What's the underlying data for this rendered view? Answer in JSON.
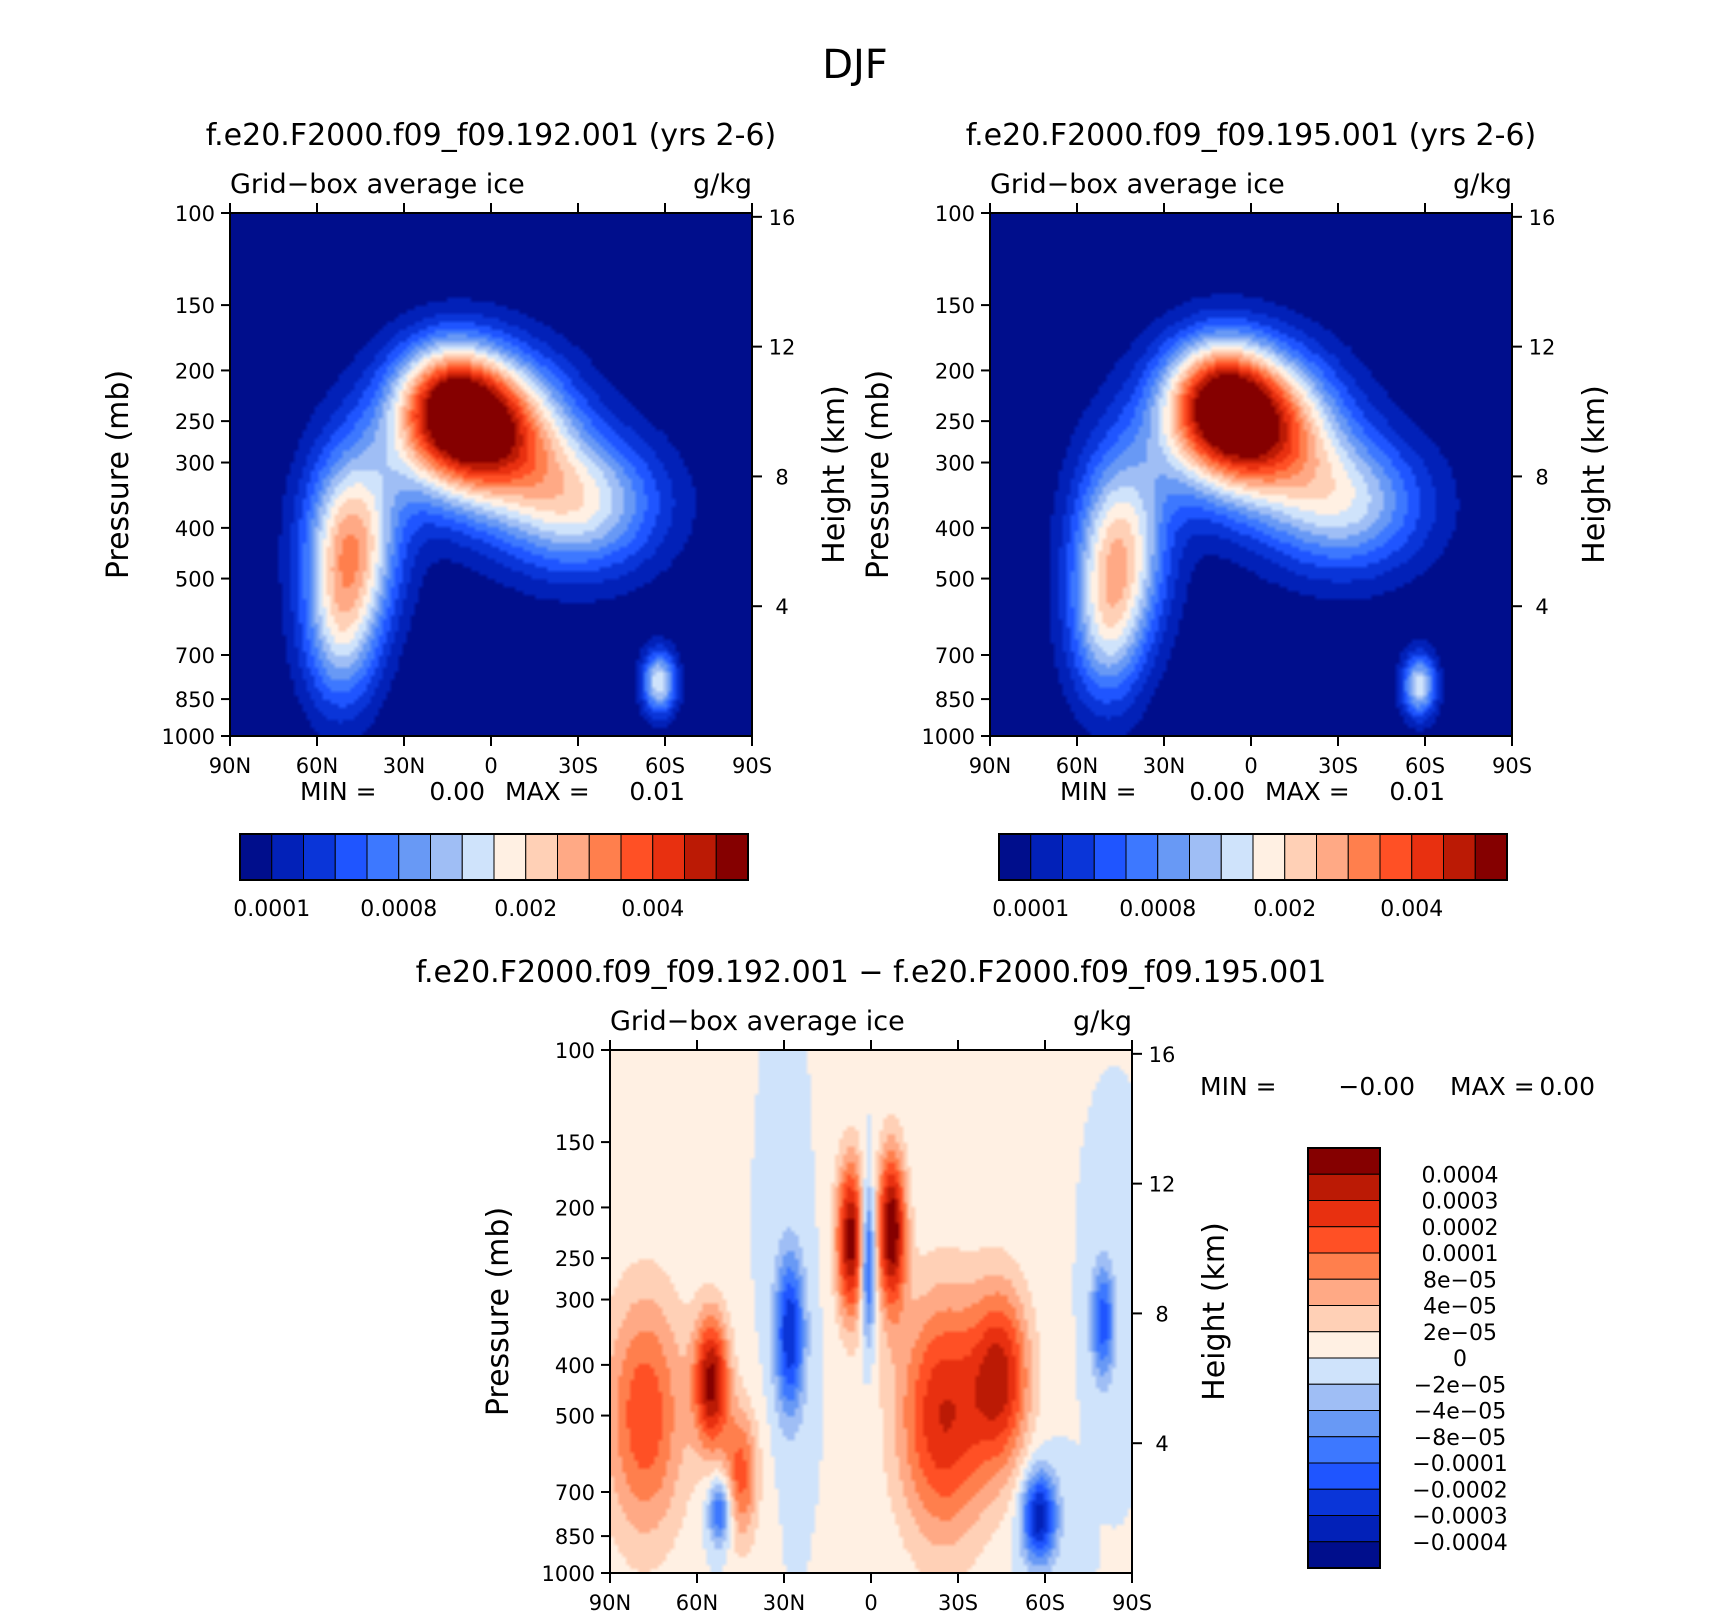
{
  "figure": {
    "title": "DJF"
  },
  "palettes": {
    "abs": [
      "#000e8c",
      "#0221b8",
      "#0a35d8",
      "#1f55ff",
      "#3d78ff",
      "#6899f5",
      "#9fbef5",
      "#cfe3fb",
      "#fff0e3",
      "#ffd0b6",
      "#ffa985",
      "#ff7f4d",
      "#ff5025",
      "#e83010",
      "#bb1a05",
      "#850000"
    ],
    "diff": [
      "#000e8c",
      "#0221b8",
      "#0a35d8",
      "#1f55ff",
      "#3d78ff",
      "#6899f5",
      "#9fbef5",
      "#cfe3fb",
      "#fff0e3",
      "#ffd0b6",
      "#ffa985",
      "#ff7f4d",
      "#ff5025",
      "#e83010",
      "#bb1a05",
      "#850000"
    ]
  },
  "chart_data": [
    {
      "type": "heatmap",
      "id": "p1",
      "title": "f.e20.F2000.f09_f09.192.001 (yrs 2-6)",
      "left_label": "Grid−box average ice",
      "right_label": "g/kg",
      "xlabel": "",
      "ylabel": "Pressure (mb)",
      "ylabel_right": "Height (km)",
      "x_ticks": [
        "90N",
        "60N",
        "30N",
        "0",
        "30S",
        "60S",
        "90S"
      ],
      "x_range": [
        90,
        -90
      ],
      "y_ticks": [
        100,
        150,
        200,
        250,
        300,
        400,
        500,
        700,
        850,
        1000
      ],
      "y_range": [
        100,
        1000
      ],
      "y_scale": "log",
      "height_ticks": [
        16,
        12,
        8,
        4
      ],
      "stats": {
        "min_label": "MIN =",
        "min_value": "0.00",
        "max_label": "MAX =",
        "max_value": "0.01"
      },
      "colorbar": {
        "orientation": "horizontal",
        "labels": [
          "0.0001",
          "0.0008",
          "0.002",
          "0.004"
        ]
      },
      "features": [
        {
          "lat": 5,
          "p": 260,
          "lat_width": 28,
          "p_width": 0.32,
          "amp": 1.0
        },
        {
          "lat": 15,
          "p": 220,
          "lat_width": 18,
          "p_width": 0.25,
          "amp": 0.4
        },
        {
          "lat": 48,
          "p": 420,
          "lat_width": 16,
          "p_width": 0.4,
          "amp": 0.62
        },
        {
          "lat": 52,
          "p": 650,
          "lat_width": 13,
          "p_width": 0.35,
          "amp": 0.35
        },
        {
          "lat": -30,
          "p": 360,
          "lat_width": 28,
          "p_width": 0.3,
          "amp": 0.5
        },
        {
          "lat": -58,
          "p": 790,
          "lat_width": 6,
          "p_width": 0.14,
          "amp": 0.5
        }
      ]
    },
    {
      "type": "heatmap",
      "id": "p2",
      "title": "f.e20.F2000.f09_f09.195.001 (yrs 2-6)",
      "left_label": "Grid−box average ice",
      "right_label": "g/kg",
      "xlabel": "",
      "ylabel": "Pressure (mb)",
      "ylabel_right": "Height (km)",
      "x_ticks": [
        "90N",
        "60N",
        "30N",
        "0",
        "30S",
        "60S",
        "90S"
      ],
      "x_range": [
        90,
        -90
      ],
      "y_ticks": [
        100,
        150,
        200,
        250,
        300,
        400,
        500,
        700,
        850,
        1000
      ],
      "y_range": [
        100,
        1000
      ],
      "y_scale": "log",
      "height_ticks": [
        16,
        12,
        8,
        4
      ],
      "stats": {
        "min_label": "MIN =",
        "min_value": "0.00",
        "max_label": "MAX =",
        "max_value": "0.01"
      },
      "colorbar": {
        "orientation": "horizontal",
        "labels": [
          "0.0001",
          "0.0008",
          "0.002",
          "0.004"
        ]
      },
      "features": [
        {
          "lat": 2,
          "p": 255,
          "lat_width": 28,
          "p_width": 0.32,
          "amp": 0.98
        },
        {
          "lat": 12,
          "p": 215,
          "lat_width": 18,
          "p_width": 0.25,
          "amp": 0.4
        },
        {
          "lat": 45,
          "p": 430,
          "lat_width": 16,
          "p_width": 0.42,
          "amp": 0.55
        },
        {
          "lat": 50,
          "p": 640,
          "lat_width": 13,
          "p_width": 0.35,
          "amp": 0.32
        },
        {
          "lat": -32,
          "p": 360,
          "lat_width": 28,
          "p_width": 0.3,
          "amp": 0.45
        },
        {
          "lat": -58,
          "p": 800,
          "lat_width": 6,
          "p_width": 0.14,
          "amp": 0.48
        }
      ]
    },
    {
      "type": "heatmap",
      "id": "p3",
      "title": "f.e20.F2000.f09_f09.192.001 − f.e20.F2000.f09_f09.195.001",
      "left_label": "Grid−box average ice",
      "right_label": "g/kg",
      "xlabel": "",
      "ylabel": "Pressure (mb)",
      "ylabel_right": "Height (km)",
      "x_ticks": [
        "90N",
        "60N",
        "30N",
        "0",
        "30S",
        "60S",
        "90S"
      ],
      "x_range": [
        90,
        -90
      ],
      "y_ticks": [
        100,
        150,
        200,
        250,
        300,
        400,
        500,
        700,
        850,
        1000
      ],
      "y_range": [
        100,
        1000
      ],
      "y_scale": "log",
      "height_ticks": [
        16,
        12,
        8,
        4
      ],
      "stats": {
        "min_label": "MIN =",
        "min_value": "−0.00",
        "max_label": "MAX =",
        "max_value": "0.00"
      },
      "colorbar": {
        "orientation": "vertical",
        "labels": [
          "0.0004",
          "0.0003",
          "0.0002",
          "0.0001",
          "8e−05",
          "4e−05",
          "2e−05",
          "0",
          "−2e−05",
          "−4e−05",
          "−8e−05",
          "−0.0001",
          "−0.0002",
          "−0.0003",
          "−0.0004"
        ]
      },
      "features": [
        {
          "lat": 78,
          "p": 500,
          "lat_width": 14,
          "p_width": 0.55,
          "amp": 0.6
        },
        {
          "lat": 55,
          "p": 430,
          "lat_width": 6,
          "p_width": 0.3,
          "amp": 0.9
        },
        {
          "lat": 45,
          "p": 650,
          "lat_width": 6,
          "p_width": 0.3,
          "amp": 0.55
        },
        {
          "lat": 52,
          "p": 760,
          "lat_width": 4,
          "p_width": 0.15,
          "amp": -0.6
        },
        {
          "lat": 28,
          "p": 350,
          "lat_width": 5,
          "p_width": 0.35,
          "amp": -0.75
        },
        {
          "lat": 7,
          "p": 230,
          "lat_width": 5,
          "p_width": 0.35,
          "amp": 0.95
        },
        {
          "lat": 1,
          "p": 250,
          "lat_width": 2.5,
          "p_width": 0.35,
          "amp": -0.75
        },
        {
          "lat": -7,
          "p": 220,
          "lat_width": 5,
          "p_width": 0.35,
          "amp": 1.0
        },
        {
          "lat": -25,
          "p": 500,
          "lat_width": 16,
          "p_width": 0.55,
          "amp": 0.75
        },
        {
          "lat": -45,
          "p": 420,
          "lat_width": 10,
          "p_width": 0.4,
          "amp": 0.7
        },
        {
          "lat": -58,
          "p": 780,
          "lat_width": 6,
          "p_width": 0.2,
          "amp": -0.85
        },
        {
          "lat": -80,
          "p": 330,
          "lat_width": 4,
          "p_width": 0.25,
          "amp": -0.6
        }
      ]
    }
  ]
}
